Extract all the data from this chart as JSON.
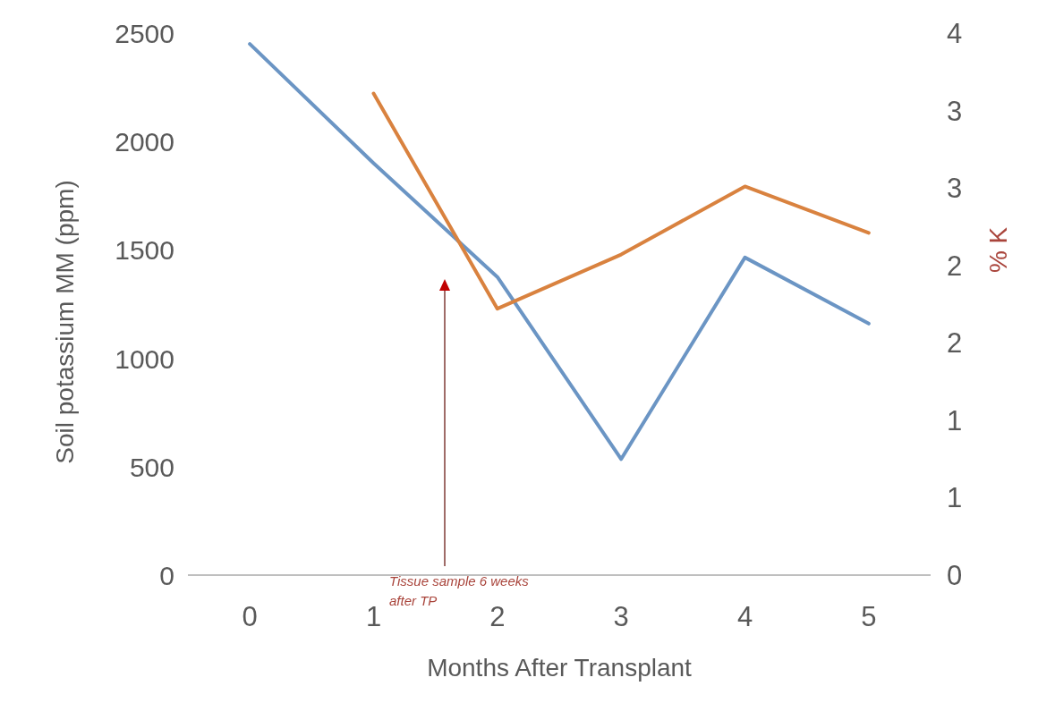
{
  "chart_data": {
    "type": "line",
    "xlabel": "Months After Transplant",
    "ylabel": "Soil potassium MM (ppm)",
    "y2label": "% K",
    "x": [
      0,
      1,
      2,
      3,
      4,
      5
    ],
    "xlim": [
      -0.5,
      5.5
    ],
    "xticks": [
      0,
      1,
      2,
      3,
      4,
      5
    ],
    "ylim": [
      0,
      2500
    ],
    "yticks": [
      0,
      500,
      1000,
      1500,
      2000,
      2500
    ],
    "y2lim": [
      0,
      3.5
    ],
    "y2ticks": [
      0,
      {
        "value": 0.5,
        "label": "1"
      },
      1,
      {
        "value": 1.5,
        "label": "2"
      },
      2,
      {
        "value": 2.5,
        "label": "3"
      },
      3,
      {
        "value": 3.5,
        "label": "4"
      }
    ],
    "series": [
      {
        "color": "#6b95c4",
        "values": [
          2450,
          1900,
          1375,
          535,
          1465,
          1160
        ]
      },
      {
        "color": "#d9823f",
        "axis": "y2",
        "x": [
          1,
          2,
          3,
          4,
          5
        ],
        "values": [
          3.11,
          1.72,
          2.07,
          2.51,
          2.21
        ]
      }
    ],
    "annotations": [
      "Tissue sample 6 weeks after TP"
    ],
    "grid": false
  }
}
